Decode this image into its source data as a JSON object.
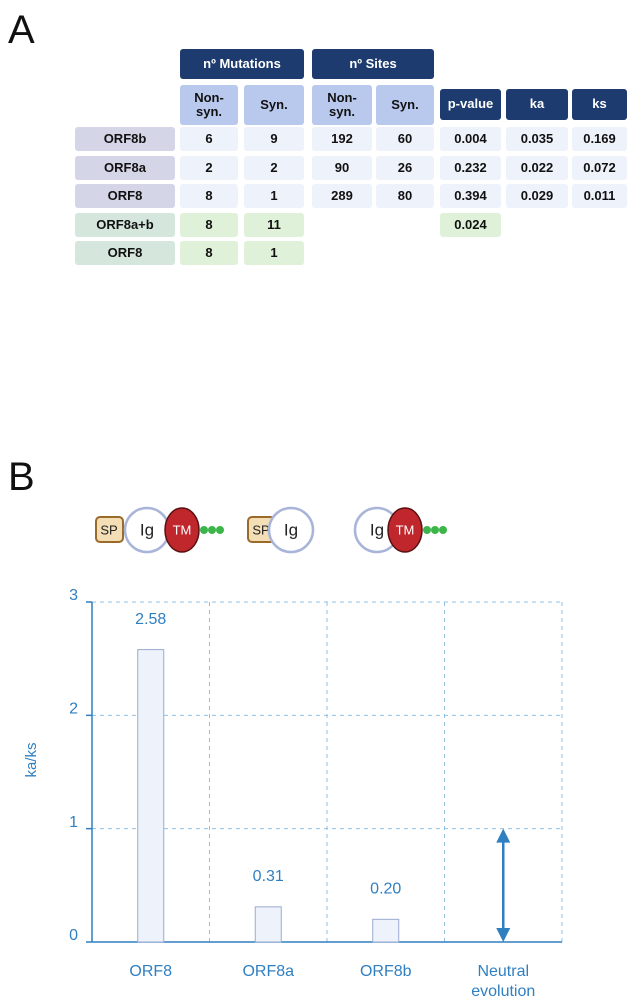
{
  "panel_a": {
    "label": "A",
    "group_headers": [
      "nº Mutations",
      "nº Sites"
    ],
    "column_headers": [
      "Non-syn.",
      "Syn.",
      "Non-syn.",
      "Syn.",
      "p-value",
      "ka",
      "ks"
    ],
    "rows": [
      [
        "ORF8b",
        "6",
        "9",
        "192",
        "60",
        "0.004",
        "0.035",
        "0.169"
      ],
      [
        "ORF8a",
        "2",
        "2",
        "90",
        "26",
        "0.232",
        "0.022",
        "0.072"
      ],
      [
        "ORF8",
        "8",
        "1",
        "289",
        "80",
        "0.394",
        "0.029",
        "0.011"
      ],
      [
        "ORF8a+b",
        "8",
        "11",
        null,
        null,
        "0.024",
        null,
        null
      ],
      [
        "ORF8",
        "8",
        "1",
        null,
        null,
        null,
        null,
        null
      ]
    ]
  },
  "panel_b": {
    "label": "B",
    "protein_diagrams": [
      [
        "SP",
        "Ig",
        "TM"
      ],
      [
        "SP",
        "Ig"
      ],
      [
        "Ig",
        "TM"
      ]
    ]
  },
  "chart_data": {
    "type": "bar",
    "ylabel": "ka/ks",
    "categories": [
      "ORF8",
      "ORF8a",
      "ORF8b",
      "Neutral evolution"
    ],
    "values": [
      2.58,
      0.31,
      0.2,
      null
    ],
    "value_labels": [
      "2.58",
      "0.31",
      "0.20",
      null
    ],
    "color": "#eef2fb",
    "ylim": [
      0,
      3
    ],
    "yticks": [
      0,
      1,
      2,
      3
    ],
    "grid": true
  }
}
